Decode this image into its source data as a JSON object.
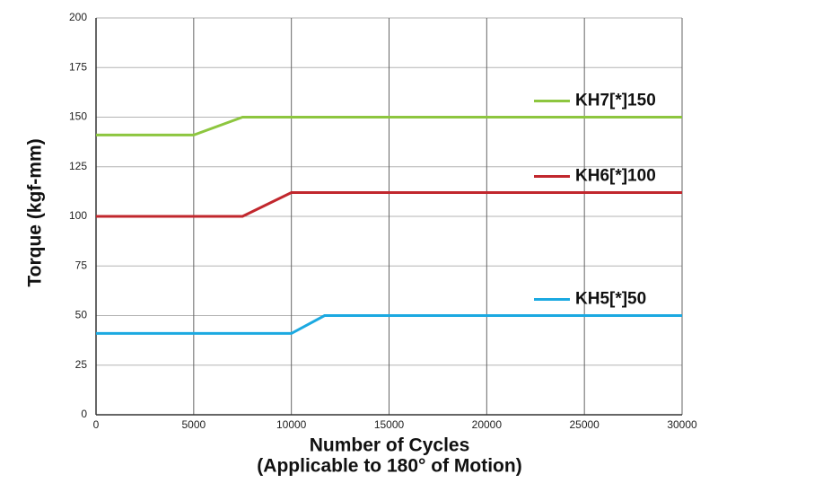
{
  "chart_data": {
    "type": "line",
    "x_label": [
      "Number of Cycles",
      "(Applicable to 180° of Motion)"
    ],
    "y_label": "Torque (kgf-mm)",
    "x": [
      0,
      5000,
      7500,
      10000,
      11700,
      30000
    ],
    "series": [
      {
        "name": "KH7[*]150",
        "color": "#8dc63f",
        "values": [
          141,
          141,
          150,
          150,
          150,
          150
        ]
      },
      {
        "name": "KH6[*]100",
        "color": "#c1272d",
        "values": [
          100,
          100,
          100,
          112,
          112,
          112
        ]
      },
      {
        "name": "KH5[*]50",
        "color": "#1ba9e1",
        "values": [
          41,
          41,
          41,
          41,
          50,
          50
        ]
      }
    ],
    "xlim": [
      0,
      30000
    ],
    "xticks": [
      0,
      5000,
      10000,
      15000,
      20000,
      25000,
      30000
    ],
    "ylim": [
      0,
      200
    ],
    "yticks": [
      0,
      25,
      50,
      75,
      100,
      125,
      150,
      175,
      200
    ],
    "grid": true
  }
}
